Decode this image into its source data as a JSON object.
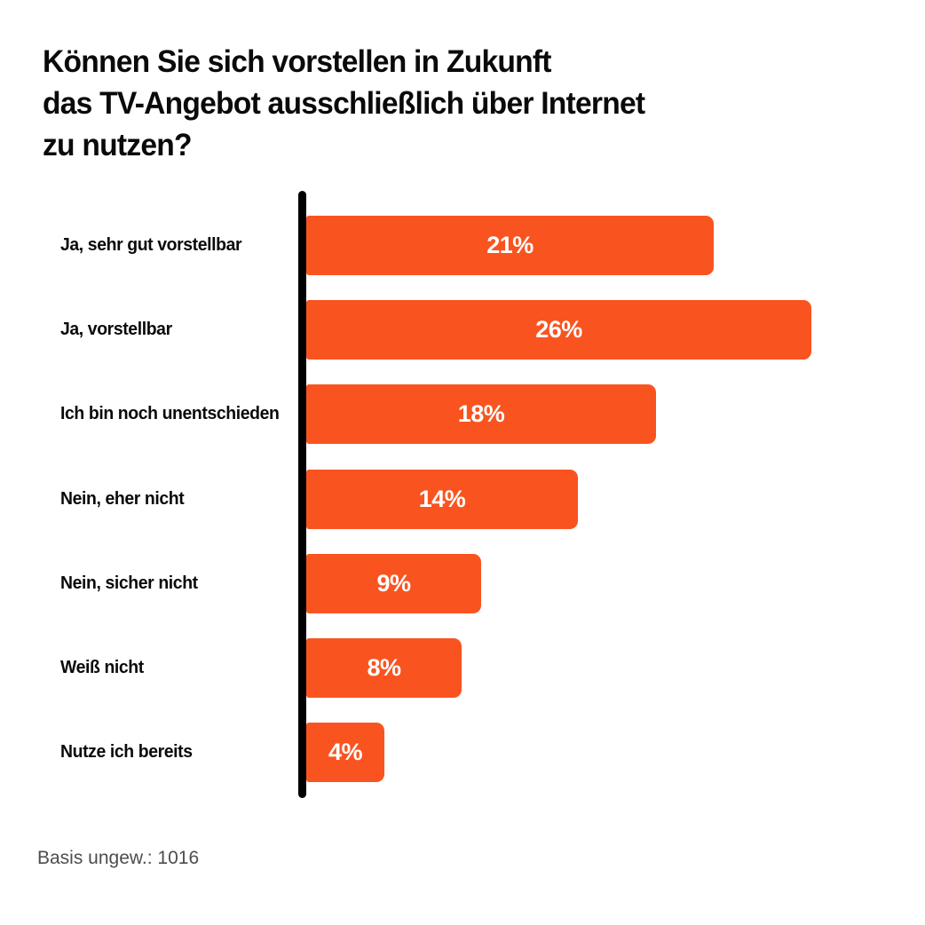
{
  "page": {
    "background": "#ffffff"
  },
  "title_lines": [
    "Können Sie sich vorstellen in Zukunft",
    "das TV-Angebot ausschließlich über Internet",
    "zu nutzen?"
  ],
  "footer": {
    "text": "Basis ungew.: 1016"
  },
  "colors": {
    "bar": "#F95420",
    "axis": "#000000",
    "title_text": "#0a0a0a",
    "category_text": "#0a0a0a",
    "value_text": "#ffffff",
    "footer_text": "#4d4d4d"
  },
  "chart_data": {
    "type": "bar",
    "orientation": "horizontal",
    "title": "Können Sie sich vorstellen in Zukunft das TV-Angebot ausschließlich über Internet zu nutzen?",
    "categories": [
      "Ja, sehr gut vorstellbar",
      "Ja, vorstellbar",
      "Ich bin noch unentschieden",
      "Nein, eher nicht",
      "Nein, sicher nicht",
      "Weiß nicht",
      "Nutze ich bereits"
    ],
    "values": [
      21,
      26,
      18,
      14,
      9,
      8,
      4
    ],
    "value_labels": [
      "21%",
      "26%",
      "18%",
      "14%",
      "9%",
      "8%",
      "4%"
    ],
    "xlim": [
      0,
      26
    ],
    "grid": false,
    "legend": false,
    "value_label_position": "center-inside",
    "note": "Basis ungew.: 1016"
  }
}
